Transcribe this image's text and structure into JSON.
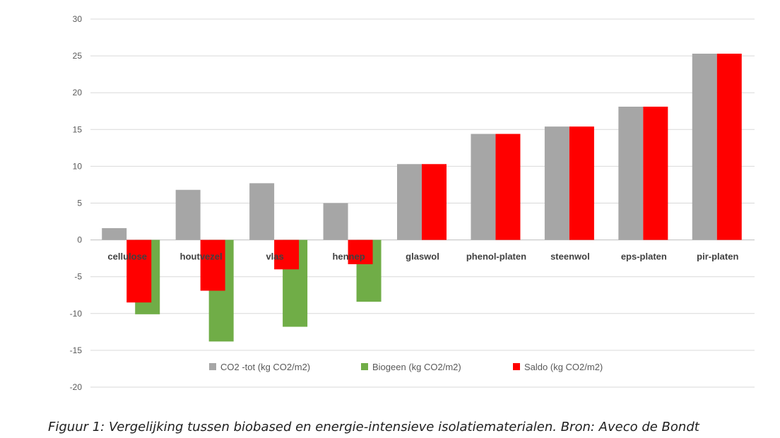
{
  "chart_data": {
    "type": "bar",
    "categories": [
      "cellulose",
      "houtvezel",
      "vlas",
      "hennep",
      "glaswol",
      "phenol-platen",
      "steenwol",
      "eps-platen",
      "pir-platen"
    ],
    "series": [
      {
        "name": "CO2 -tot (kg CO2/m2)",
        "color": "#a6a6a6",
        "values": [
          1.6,
          6.8,
          7.7,
          5.0,
          10.3,
          14.4,
          15.4,
          18.1,
          25.3
        ]
      },
      {
        "name": "Biogeen (kg CO2/m2)",
        "color": "#70ad47",
        "values": [
          -10.1,
          -13.8,
          -11.8,
          -8.4,
          0,
          0,
          0,
          0,
          0
        ]
      },
      {
        "name": "Saldo (kg CO2/m2)",
        "color": "#ff0000",
        "values": [
          -8.5,
          -6.9,
          -4.0,
          -3.3,
          10.3,
          14.4,
          15.4,
          18.1,
          25.3
        ]
      }
    ],
    "y_ticks": [
      30,
      25,
      20,
      15,
      10,
      5,
      0,
      -5,
      -10,
      -15,
      -20
    ],
    "ylim": [
      -20,
      30
    ],
    "grid": true,
    "legend": "bottom",
    "title": "",
    "xlabel": "",
    "ylabel": ""
  },
  "caption": "Figuur 1: Vergelijking tussen biobased en energie-intensieve isolatiematerialen. Bron: Aveco de Bondt"
}
